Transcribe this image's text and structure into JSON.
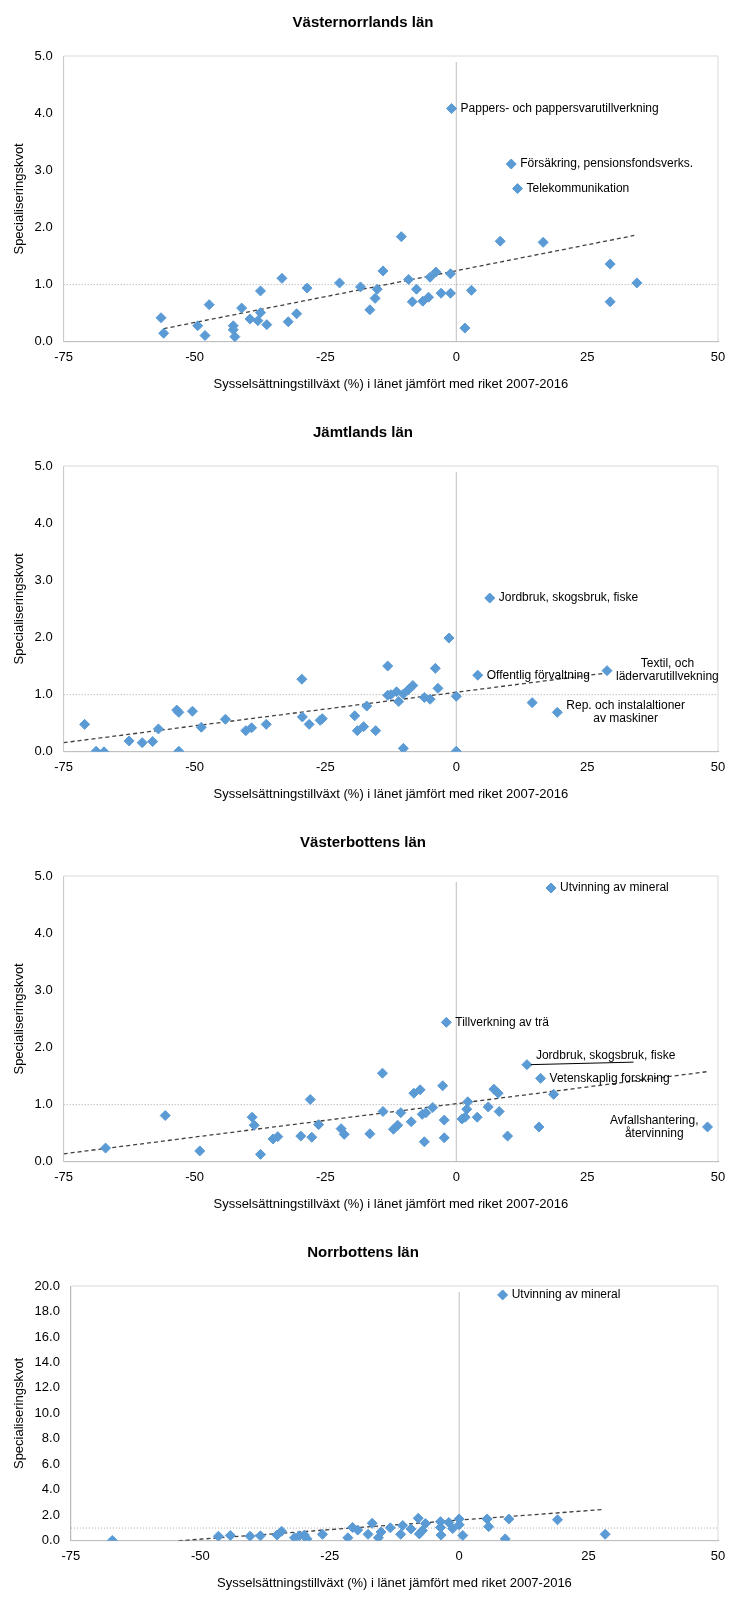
{
  "chart_data": [
    {
      "type": "scatter",
      "title": "Västernorrlands län",
      "xlabel": "Sysselsättningstillväxt (%) i länet jämfört med riket 2007-2016",
      "ylabel": "Specialiseringskvot",
      "xlim": [
        -75,
        50
      ],
      "xticks": [
        -75,
        -50,
        -25,
        0,
        25,
        50
      ],
      "ylim": [
        0,
        5
      ],
      "yticks": [
        {
          "value": 0,
          "label": "0.0"
        },
        {
          "value": 1,
          "label": "1.0"
        },
        {
          "value": 2,
          "label": "2.0"
        },
        {
          "value": 3,
          "label": "3.0"
        },
        {
          "value": 4,
          "label": "4.0"
        },
        {
          "value": 5,
          "label": "5.0"
        }
      ],
      "ref_lines": [
        {
          "axis": "x",
          "value": 0,
          "color": "#bfbfbf",
          "line_style": "solid"
        },
        {
          "axis": "y",
          "value": 1,
          "color": "#a6a6a6",
          "line_style": "dotted"
        }
      ],
      "series": [
        {
          "type": "scatter",
          "color": "#5b9bd5",
          "marker": "diamond",
          "x": [
            -56.4,
            -55.9,
            -49.4,
            -48,
            -47.2,
            -42.6,
            -42.6,
            -42.3,
            -41,
            -39.4,
            -37.4,
            -37.4,
            -37.9,
            -36.2,
            -33.3,
            -32.1,
            -30.5,
            -28.5,
            -22.3,
            -18.3,
            -16.5,
            -15.5,
            -15.1,
            -14,
            -10.5,
            -9.1,
            -8.4,
            -7.6,
            -6.4,
            -5.3,
            -5,
            -3.9,
            -2.9,
            -1.1,
            -1.1,
            -0.9,
            1.65,
            2.9,
            8.4,
            10.5,
            11.7,
            16.6,
            29.4,
            29.4,
            34.5
          ],
          "values": [
            0.42,
            0.15,
            0.28,
            0.11,
            0.65,
            0.28,
            0.21,
            0.09,
            0.59,
            0.4,
            0.89,
            0.51,
            0.37,
            0.3,
            1.11,
            0.35,
            0.49,
            0.94,
            1.03,
            0.96,
            0.56,
            0.76,
            0.92,
            1.24,
            1.84,
            1.09,
            0.7,
            0.92,
            0.71,
            0.78,
            1.13,
            1.22,
            0.85,
            0.85,
            1.19,
            4.08,
            0.24,
            0.9,
            1.76,
            3.11,
            2.68,
            1.74,
            1.36,
            0.7,
            1.03
          ]
        },
        {
          "type": "line",
          "color": "#404040",
          "line_style": "dashed",
          "marker": "none",
          "x": [
            -55.9,
            34
          ],
          "values": [
            0.23,
            1.86
          ]
        }
      ],
      "annotations": [
        {
          "text": "Pappers- och pappersvarutillverkning",
          "x": -0.9,
          "y": 4.08
        },
        {
          "text": "Försäkring, pensionsfondsverks.",
          "x": 10.5,
          "y": 3.11
        },
        {
          "text": "Telekommunikation",
          "x": 11.7,
          "y": 2.68
        }
      ]
    },
    {
      "type": "scatter",
      "title": "Jämtlands län",
      "xlabel": "Sysselsättningstillväxt (%) i länet jämfört med riket 2007-2016",
      "ylabel": "Specialiseringskvot",
      "xlim": [
        -75,
        50
      ],
      "xticks": [
        -75,
        -50,
        -25,
        0,
        25,
        50
      ],
      "ylim": [
        0,
        5
      ],
      "yticks": [
        {
          "value": 0,
          "label": "0.0"
        },
        {
          "value": 1,
          "label": "1.0"
        },
        {
          "value": 2,
          "label": "2.0"
        },
        {
          "value": 3,
          "label": "3.0"
        },
        {
          "value": 4,
          "label": "4.0"
        },
        {
          "value": 5,
          "label": "5.0"
        }
      ],
      "ref_lines": [
        {
          "axis": "x",
          "value": 0,
          "color": "#bfbfbf",
          "line_style": "solid"
        },
        {
          "axis": "y",
          "value": 1,
          "color": "#a6a6a6",
          "line_style": "dotted"
        }
      ],
      "series": [
        {
          "type": "scatter",
          "color": "#5b9bd5",
          "marker": "diamond",
          "x": [
            -71,
            -68.8,
            -67.3,
            -62.5,
            -60,
            -58,
            -56.9,
            -53.4,
            -53,
            -53,
            -50.4,
            -48.7,
            -44.1,
            -40.2,
            -39.1,
            -36.3,
            -29.5,
            -29.4,
            -28.1,
            -26,
            -25.6,
            -19.4,
            -18.9,
            -17.7,
            -17.1,
            -15.4,
            -13.1,
            -13.1,
            -12.5,
            -11.4,
            -11,
            -10.1,
            -10.1,
            -9.1,
            -8.3,
            -6.1,
            -5,
            -4,
            -3.5,
            -1.4,
            0,
            0,
            4.1,
            6.4,
            14.5,
            19.3,
            28.8
          ],
          "values": [
            0.48,
            0.01,
            0,
            0.19,
            0.16,
            0.18,
            0.4,
            0.73,
            0.69,
            0.01,
            0.71,
            0.43,
            0.57,
            0.37,
            0.42,
            0.48,
            1.27,
            0.61,
            0.48,
            0.55,
            0.58,
            0.63,
            0.37,
            0.44,
            0.8,
            0.37,
            1.5,
            0.99,
            1,
            1.05,
            0.88,
            1.01,
            0.06,
            1.09,
            1.16,
            0.95,
            0.92,
            1.46,
            1.11,
            1.99,
            0.97,
            0.01,
            1.34,
            2.69,
            0.86,
            0.69,
            1.42
          ]
        },
        {
          "type": "line",
          "color": "#404040",
          "line_style": "dashed",
          "marker": "none",
          "x": [
            -75,
            28.8
          ],
          "values": [
            0.16,
            1.38
          ]
        }
      ],
      "annotations": [
        {
          "text": "Jordbruk, skogsbruk, fiske",
          "x": 6.4,
          "y": 2.69
        },
        {
          "text": "Textil, och\nlädervarutillvekning",
          "x": 28.8,
          "y": 1.42
        },
        {
          "text": "Offentlig förvaltning",
          "x": 4.1,
          "y": 1.34
        },
        {
          "text": "Rep. och instalaltioner\nav maskiner",
          "x": 19.3,
          "y": 0.69
        }
      ]
    },
    {
      "type": "scatter",
      "title": "Västerbottens län",
      "xlabel": "Sysselsättningstillväxt (%) i länet jämfört med riket 2007-2016",
      "ylabel": "Specialiseringskvot",
      "xlim": [
        -75,
        50
      ],
      "xticks": [
        -75,
        -50,
        -25,
        0,
        25,
        50
      ],
      "ylim": [
        0,
        5
      ],
      "yticks": [
        {
          "value": 0,
          "label": "0.0"
        },
        {
          "value": 1,
          "label": "1.0"
        },
        {
          "value": 2,
          "label": "2.0"
        },
        {
          "value": 3,
          "label": "3.0"
        },
        {
          "value": 4,
          "label": "4.0"
        },
        {
          "value": 5,
          "label": "5.0"
        }
      ],
      "ref_lines": [
        {
          "axis": "x",
          "value": 0,
          "color": "#bfbfbf",
          "line_style": "solid"
        },
        {
          "axis": "y",
          "value": 1,
          "color": "#a6a6a6",
          "line_style": "dotted"
        }
      ],
      "series": [
        {
          "type": "scatter",
          "color": "#5b9bd5",
          "marker": "diamond",
          "x": [
            -67,
            -55.6,
            -49,
            -39,
            -38.6,
            -37.4,
            -35,
            -34.1,
            -29.7,
            -27.6,
            -27.9,
            -26.3,
            -22,
            -21.4,
            -16.5,
            -14.1,
            -14,
            -12,
            -11.2,
            -10.6,
            -8.6,
            -8.1,
            -6.9,
            -6.5,
            -5.8,
            -6.1,
            -4.5,
            -2.6,
            -2.3,
            -2.3,
            -1.9,
            1.1,
            1.7,
            2,
            2.2,
            4,
            6.1,
            7.2,
            8,
            8.2,
            9.8,
            13.5,
            15.8,
            16.1,
            18.6,
            18.1,
            48
          ],
          "values": [
            0.24,
            0.81,
            0.19,
            0.78,
            0.64,
            0.13,
            0.4,
            0.44,
            0.45,
            0.43,
            1.09,
            0.65,
            0.58,
            0.48,
            0.49,
            1.55,
            0.88,
            0.57,
            0.64,
            0.86,
            0.7,
            1.2,
            1.26,
            0.83,
            0.86,
            0.35,
            0.95,
            1.33,
            0.73,
            0.42,
            2.44,
            0.75,
            0.78,
            0.92,
            1.05,
            0.78,
            0.96,
            1.27,
            1.2,
            0.88,
            0.45,
            1.7,
            0.61,
            1.46,
            1.18,
            4.79,
            0.61
          ]
        },
        {
          "type": "line",
          "color": "#404040",
          "line_style": "dashed",
          "marker": "none",
          "x": [
            -75,
            48.2
          ],
          "values": [
            0.14,
            1.58
          ]
        }
      ],
      "annotations": [
        {
          "text": "Utvinning av mineral",
          "x": 18.1,
          "y": 4.79
        },
        {
          "text": "Tillverkning av trä",
          "x": -1.9,
          "y": 2.44
        },
        {
          "text": "Vetenskaplig forskning",
          "x": 16.1,
          "y": 1.46
        },
        {
          "text": "Jordbruk, skogsbruk, fiske",
          "x": 13.5,
          "y": 1.7
        },
        {
          "text": "Avfallshantering,\nåtervinning",
          "x": 48,
          "y": 0.61
        }
      ]
    },
    {
      "type": "scatter",
      "title": "Norrbottens län",
      "xlabel": "Sysselsättningstillväxt (%) i länet jämfört med riket 2007-2016",
      "ylabel": "Specialiseringskvot",
      "xlim": [
        -75,
        50
      ],
      "xticks": [
        -75,
        -50,
        -25,
        0,
        25,
        50
      ],
      "ylim": [
        0,
        20
      ],
      "yticks": [
        {
          "value": 0,
          "label": "0.0"
        },
        {
          "value": 2,
          "label": "2.0"
        },
        {
          "value": 4,
          "label": "4.0"
        },
        {
          "value": 6,
          "label": "6.0"
        },
        {
          "value": 8,
          "label": "8.0"
        },
        {
          "value": 10,
          "label": "10.0"
        },
        {
          "value": 12,
          "label": "12.0"
        },
        {
          "value": 14,
          "label": "14.0"
        },
        {
          "value": 16,
          "label": "16.0"
        },
        {
          "value": 18,
          "label": "18.0"
        },
        {
          "value": 20,
          "label": "20.0"
        }
      ],
      "ref_lines": [
        {
          "axis": "x",
          "value": 0,
          "color": "#bfbfbf",
          "line_style": "solid"
        },
        {
          "axis": "y",
          "value": 1,
          "color": "#a6a6a6",
          "line_style": "dotted"
        }
      ],
      "series": [
        {
          "type": "scatter",
          "color": "#5b9bd5",
          "marker": "diamond",
          "x": [
            -67,
            -46.5,
            -44.2,
            -40.4,
            -38.4,
            -35.2,
            -34.3,
            -31.8,
            -30.9,
            -29.9,
            -29.4,
            -26.4,
            -21.5,
            -20.6,
            -19.6,
            -17.6,
            -16.8,
            -15.6,
            -15.1,
            -13.3,
            -11.3,
            -10.9,
            -9.3,
            -7.9,
            -7.7,
            -7.1,
            -6.5,
            -3.6,
            -3.5,
            -3.6,
            -2,
            -1.25,
            0,
            0,
            0.7,
            5.4,
            5.7,
            9.6,
            8.9,
            19,
            28.2,
            8.4
          ],
          "values": [
            0.03,
            0.36,
            0.42,
            0.36,
            0.39,
            0.45,
            0.75,
            0.24,
            0.39,
            0.45,
            0.15,
            0.51,
            0.24,
            1.05,
            0.84,
            0.51,
            1.38,
            0.24,
            0.69,
            1.02,
            0.51,
            1.2,
            0.93,
            1.77,
            0.54,
            0.81,
            1.35,
            1.5,
            0.45,
            1.05,
            1.44,
            0.96,
            1.71,
            1.26,
            0.42,
            1.71,
            1.11,
            1.71,
            0.15,
            1.65,
            0.51,
            19.3
          ]
        },
        {
          "type": "line",
          "color": "#404040",
          "line_style": "dashed",
          "marker": "none",
          "x": [
            -54.2,
            28
          ],
          "values": [
            0,
            2.46
          ]
        }
      ],
      "annotations": [
        {
          "text": "Utvinning av mineral",
          "x": 8.4,
          "y": 19.3
        }
      ]
    }
  ]
}
